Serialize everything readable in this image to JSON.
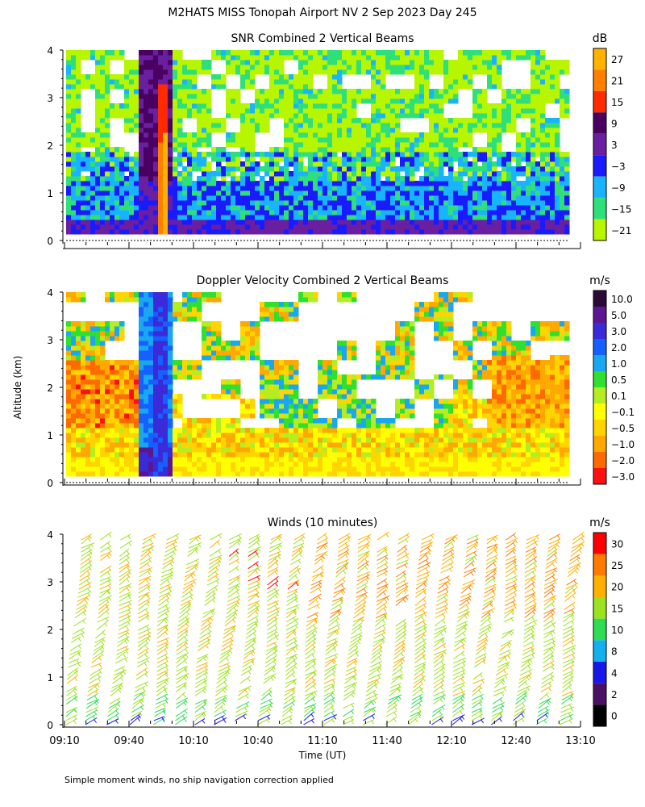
{
  "title": "M2HATS MISS Tonopah Airport NV   2 Sep 2023 Day 245",
  "ylabel": "Altitude (km)",
  "xlabel": "Time (UT)",
  "footnote": "Simple moment winds, no ship navigation correction applied",
  "chart_data": [
    {
      "type": "heatmap",
      "title": "SNR Combined 2 Vertical Beams",
      "ylabel": "Altitude (km)",
      "ylim": [
        0,
        4
      ],
      "yticks": [
        "0",
        "1",
        "2",
        "3",
        "4"
      ],
      "colorbar": {
        "unit": "dB",
        "labels": [
          "27",
          "21",
          "15",
          "9",
          "3",
          "−3",
          "−9",
          "−15",
          "−21"
        ],
        "colors": [
          "#ffb300",
          "#ff7f00",
          "#ff2a00",
          "#4a0060",
          "#6a1fa0",
          "#1a1aff",
          "#19b4ff",
          "#2fe07a",
          "#b8f500"
        ]
      }
    },
    {
      "type": "heatmap",
      "title": "Doppler Velocity Combined 2 Vertical Beams",
      "ylabel": "Altitude (km)",
      "ylim": [
        0,
        4
      ],
      "yticks": [
        "0",
        "1",
        "2",
        "3",
        "4"
      ],
      "colorbar": {
        "unit": "m/s",
        "labels": [
          "10.0",
          "5.0",
          "3.0",
          "2.0",
          "1.0",
          "0.5",
          "0.1",
          "−0.1",
          "−0.5",
          "−1.0",
          "−2.0",
          "−3.0"
        ],
        "colors": [
          "#2a0a36",
          "#5a1790",
          "#3a2ad8",
          "#1560ff",
          "#19a8f0",
          "#2fe02f",
          "#b4ee22",
          "#ffff00",
          "#ffd400",
          "#ffa800",
          "#ff6a00",
          "#ff1010"
        ]
      }
    },
    {
      "type": "wind-barbs",
      "title": "Winds (10 minutes)",
      "ylabel": "Altitude (km)",
      "ylim": [
        0,
        4
      ],
      "yticks": [
        "0",
        "1",
        "2",
        "3",
        "4"
      ],
      "xlabel": "Time (UT)",
      "xticks": [
        "09:10",
        "09:40",
        "10:10",
        "10:40",
        "11:10",
        "11:40",
        "12:10",
        "12:40",
        "13:10"
      ],
      "colorbar": {
        "unit": "m/s",
        "labels": [
          "30",
          "25",
          "20",
          "15",
          "10",
          "8",
          "4",
          "2",
          "0"
        ],
        "colors": [
          "#ff0000",
          "#ff7a00",
          "#ffb000",
          "#9de21f",
          "#2edc55",
          "#12b0ee",
          "#1818e8",
          "#4a1066",
          "#000000"
        ]
      }
    }
  ]
}
